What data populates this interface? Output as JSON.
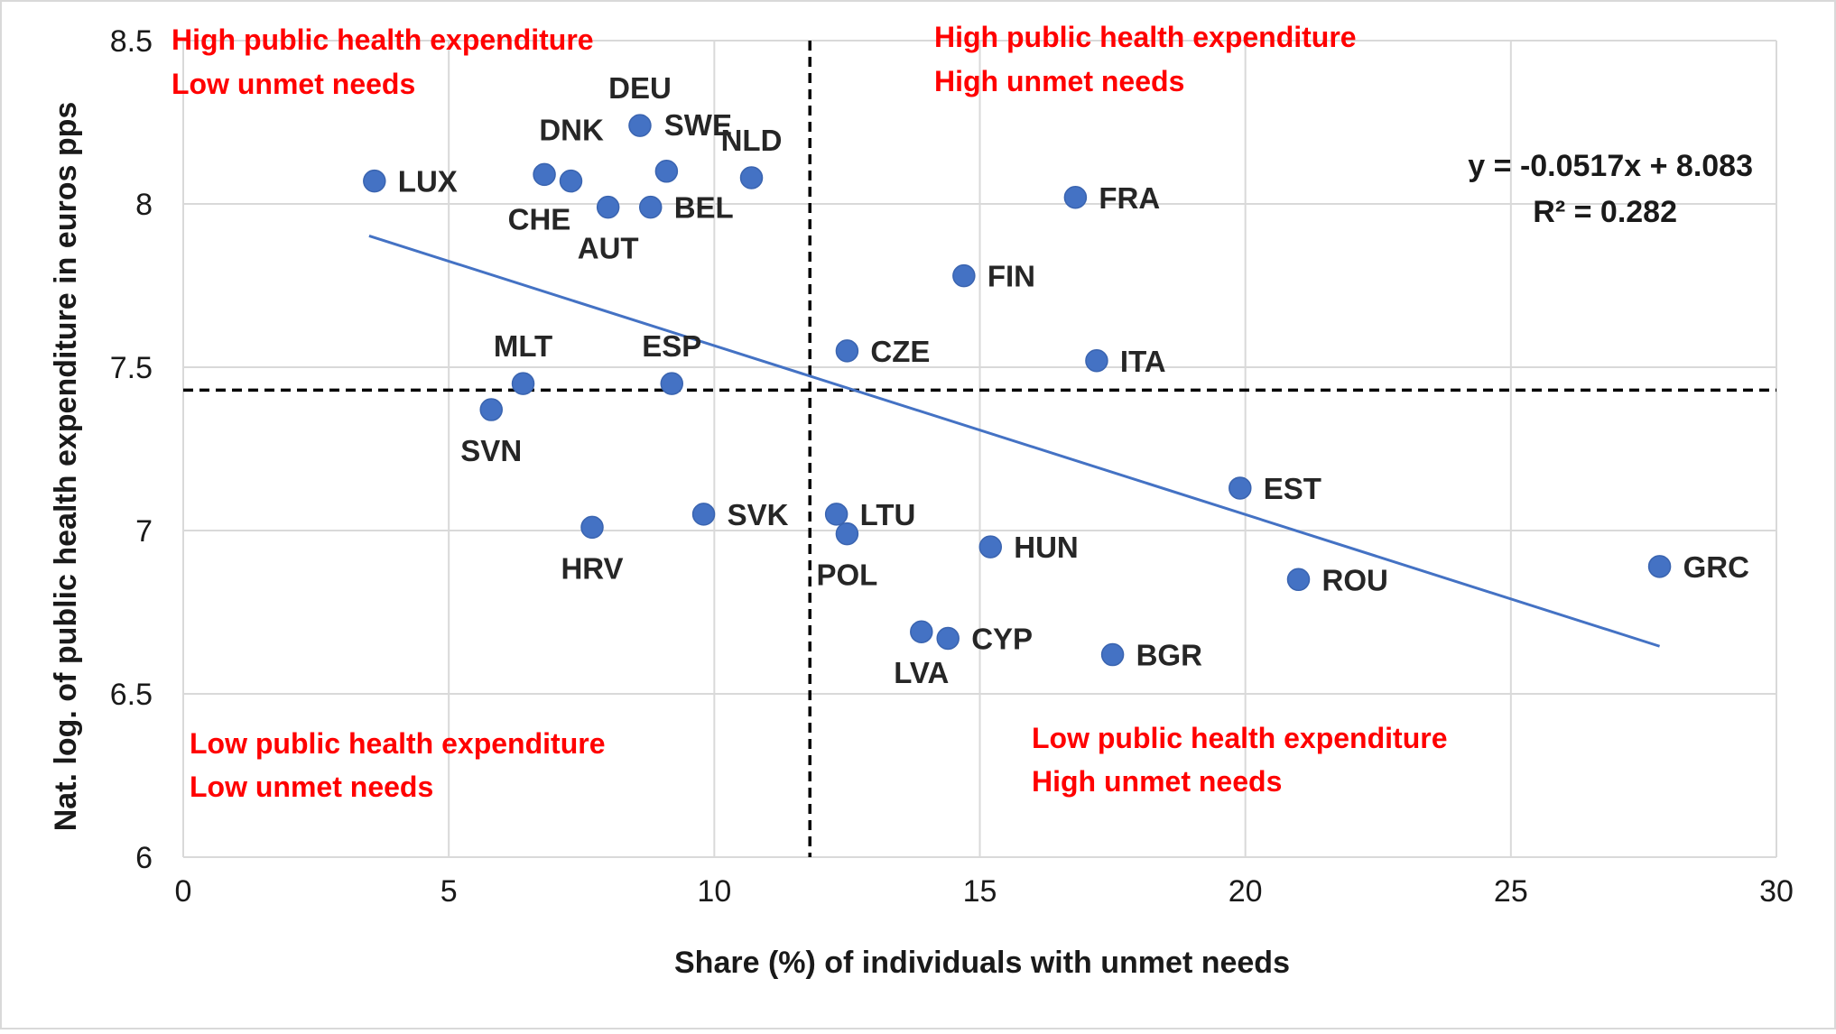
{
  "chart_data": {
    "type": "scatter",
    "xlabel": "Share (%) of individuals with unmet needs",
    "ylabel": "Nat. log. of public health expenditure in euros pps",
    "xlim": [
      0,
      30
    ],
    "ylim": [
      6,
      8.5
    ],
    "x_ticks": [
      0,
      5,
      10,
      15,
      20,
      25,
      30
    ],
    "y_ticks": [
      6,
      6.5,
      7,
      7.5,
      8,
      8.5
    ],
    "y_tick_labels": [
      "6",
      "6.5",
      "7",
      "7.5",
      "8",
      "8.5"
    ],
    "grid": true,
    "marker_color": "#4472C4",
    "trend_color": "#4472C4",
    "quadrant_text_color": "#FF0000",
    "divider_x": 11.8,
    "divider_y": 7.43,
    "trendline": {
      "slope": -0.0517,
      "intercept": 8.083,
      "x_range": [
        3.5,
        27.8
      ],
      "equation": "y = -0.0517x + 8.083",
      "r2": "R² = 0.282"
    },
    "quadrant_labels": {
      "top_left": [
        "High public health expenditure",
        "Low unmet needs"
      ],
      "top_right": [
        "High public health expenditure",
        "High unmet needs"
      ],
      "bottom_left": [
        "Low public health expenditure",
        "Low unmet needs"
      ],
      "bottom_right": [
        "Low public health expenditure",
        "High unmet needs"
      ]
    },
    "points": [
      {
        "label": "LUX",
        "x": 3.6,
        "y": 8.07,
        "pos": "right"
      },
      {
        "label": "DNK",
        "x": 6.8,
        "y": 8.09,
        "pos": "above-right"
      },
      {
        "label": "CHE",
        "x": 7.3,
        "y": 8.07,
        "pos": "below-left"
      },
      {
        "label": "AUT",
        "x": 8.0,
        "y": 7.99,
        "pos": "below"
      },
      {
        "label": "DEU",
        "x": 8.6,
        "y": 8.24,
        "pos": "above"
      },
      {
        "label": "SWE",
        "x": 9.1,
        "y": 8.1,
        "pos": "above-right"
      },
      {
        "label": "BEL",
        "x": 8.8,
        "y": 7.99,
        "pos": "right"
      },
      {
        "label": "NLD",
        "x": 10.7,
        "y": 8.08,
        "pos": "above"
      },
      {
        "label": "MLT",
        "x": 6.4,
        "y": 7.45,
        "pos": "above"
      },
      {
        "label": "ESP",
        "x": 9.2,
        "y": 7.45,
        "pos": "above"
      },
      {
        "label": "SVN",
        "x": 5.8,
        "y": 7.37,
        "pos": "below"
      },
      {
        "label": "HRV",
        "x": 7.7,
        "y": 7.01,
        "pos": "below"
      },
      {
        "label": "SVK",
        "x": 9.8,
        "y": 7.05,
        "pos": "right"
      },
      {
        "label": "CZE",
        "x": 12.5,
        "y": 7.55,
        "pos": "right"
      },
      {
        "label": "LTU",
        "x": 12.3,
        "y": 7.05,
        "pos": "right"
      },
      {
        "label": "POL",
        "x": 12.5,
        "y": 6.99,
        "pos": "below"
      },
      {
        "label": "LVA",
        "x": 13.9,
        "y": 6.69,
        "pos": "below"
      },
      {
        "label": "CYP",
        "x": 14.4,
        "y": 6.67,
        "pos": "right"
      },
      {
        "label": "FIN",
        "x": 14.7,
        "y": 7.78,
        "pos": "right"
      },
      {
        "label": "HUN",
        "x": 15.2,
        "y": 6.95,
        "pos": "right"
      },
      {
        "label": "FRA",
        "x": 16.8,
        "y": 8.02,
        "pos": "right"
      },
      {
        "label": "ITA",
        "x": 17.2,
        "y": 7.52,
        "pos": "right"
      },
      {
        "label": "BGR",
        "x": 17.5,
        "y": 6.62,
        "pos": "right"
      },
      {
        "label": "EST",
        "x": 19.9,
        "y": 7.13,
        "pos": "right"
      },
      {
        "label": "ROU",
        "x": 21.0,
        "y": 6.85,
        "pos": "right"
      },
      {
        "label": "GRC",
        "x": 27.8,
        "y": 6.89,
        "pos": "right"
      }
    ]
  }
}
